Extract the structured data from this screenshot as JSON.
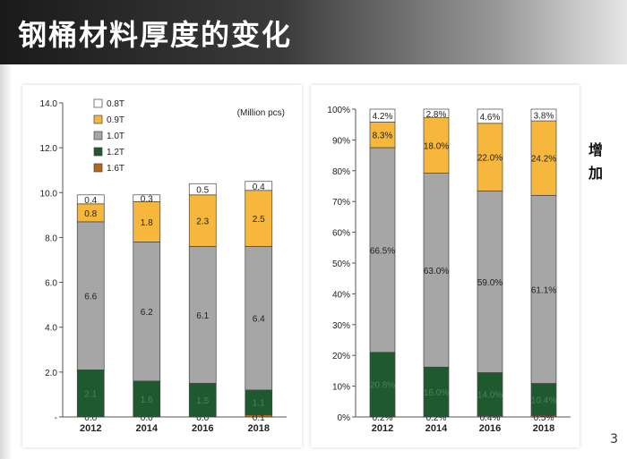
{
  "page": {
    "title": "钢桶材料厚度的变化",
    "page_number": "3",
    "side_note": "增加"
  },
  "chart_data": [
    {
      "type": "bar",
      "stacked": true,
      "unit_label": "(Million pcs)",
      "categories": [
        "2012",
        "2014",
        "2016",
        "2018"
      ],
      "ylim": [
        0,
        14
      ],
      "yticks": [
        "-",
        "2.0",
        "4.0",
        "6.0",
        "8.0",
        "10.0",
        "12.0",
        "14.0"
      ],
      "legend_position": "top-left",
      "series": [
        {
          "name": "1.6T",
          "color": "#b5651d",
          "values": [
            0.0,
            0.0,
            0.0,
            0.1
          ],
          "labels": [
            "0.0",
            "0.0",
            "0.0",
            "0.1"
          ]
        },
        {
          "name": "1.2T",
          "color": "#1e5a2e",
          "values": [
            2.1,
            1.6,
            1.5,
            1.1
          ],
          "labels": [
            "2.1",
            "1.6",
            "1.5",
            "1.1"
          ]
        },
        {
          "name": "1.0T",
          "color": "#a6a6a6",
          "values": [
            6.6,
            6.2,
            6.1,
            6.4
          ],
          "labels": [
            "6.6",
            "6.2",
            "6.1",
            "6.4"
          ]
        },
        {
          "name": "0.9T",
          "color": "#f6b73c",
          "values": [
            0.8,
            1.8,
            2.3,
            2.5
          ],
          "labels": [
            "0.8",
            "1.8",
            "2.3",
            "2.5"
          ]
        },
        {
          "name": "0.8T",
          "color": "#ffffff",
          "values": [
            0.4,
            0.3,
            0.5,
            0.4
          ],
          "labels": [
            "0.4",
            "0.3",
            "0.5",
            "0.4"
          ]
        }
      ]
    },
    {
      "type": "bar",
      "stacked": true,
      "categories": [
        "2012",
        "2014",
        "2016",
        "2018"
      ],
      "ylim": [
        0,
        100
      ],
      "yticks": [
        "0%",
        "10%",
        "20%",
        "30%",
        "40%",
        "50%",
        "60%",
        "70%",
        "80%",
        "90%",
        "100%"
      ],
      "series": [
        {
          "name": "1.6T",
          "color": "#b5651d",
          "values": [
            0.2,
            0.2,
            0.4,
            0.5
          ],
          "labels": [
            "0.2%",
            "0.2%",
            "0.4%",
            "0.5%"
          ]
        },
        {
          "name": "1.2T",
          "color": "#1e5a2e",
          "values": [
            20.8,
            16.0,
            14.0,
            10.4
          ],
          "labels": [
            "20.8%",
            "16.0%",
            "14.0%",
            "10.4%"
          ]
        },
        {
          "name": "1.0T",
          "color": "#a6a6a6",
          "values": [
            66.5,
            63.0,
            59.0,
            61.1
          ],
          "labels": [
            "66.5%",
            "63.0%",
            "59.0%",
            "61.1%"
          ]
        },
        {
          "name": "0.9T",
          "color": "#f6b73c",
          "values": [
            8.3,
            18.0,
            22.0,
            24.2
          ],
          "labels": [
            "8.3%",
            "18.0%",
            "22.0%",
            "24.2%"
          ]
        },
        {
          "name": "0.8T",
          "color": "#ffffff",
          "values": [
            4.2,
            2.8,
            4.6,
            3.8
          ],
          "labels": [
            "4.2%",
            "2.8%",
            "4.6%",
            "3.8%"
          ]
        }
      ]
    }
  ]
}
